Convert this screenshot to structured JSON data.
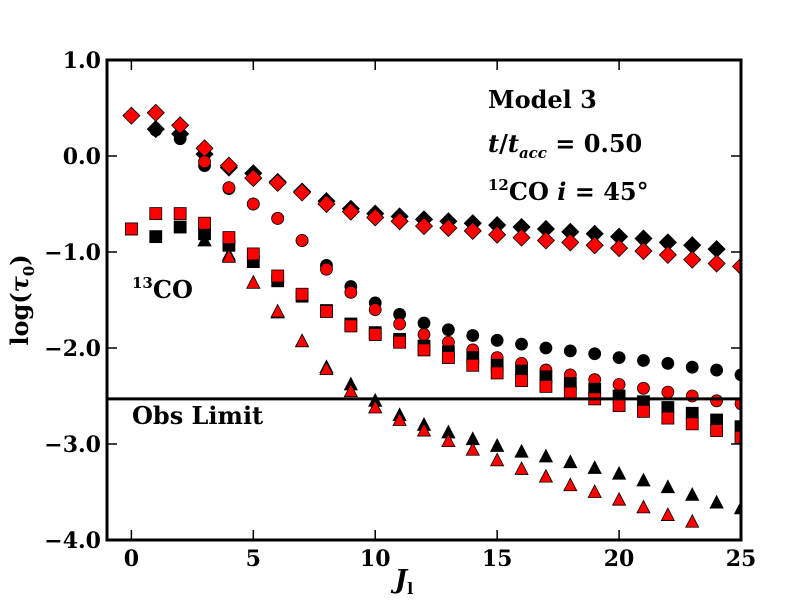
{
  "chart_data": {
    "type": "scatter",
    "xlabel": "J",
    "xlabel_sub": "l",
    "ylabel_main": "log(",
    "ylabel_sym": "τ",
    "ylabel_sub": "0",
    "ylabel_close": ")",
    "xlim": [
      -1,
      25
    ],
    "ylim": [
      -4.0,
      1.0
    ],
    "xticks": [
      0,
      5,
      10,
      15,
      20,
      25
    ],
    "xtick_labels": [
      "0",
      "5",
      "10",
      "15",
      "20",
      "25"
    ],
    "yticks": [
      1.0,
      0.0,
      -1.0,
      -2.0,
      -3.0,
      -4.0
    ],
    "ytick_labels": [
      "1.0",
      "0.0",
      "−1.0",
      "−2.0",
      "−3.0",
      "−4.0"
    ],
    "reference_line": {
      "y": -2.53,
      "label": "Obs Limit"
    },
    "annotations": {
      "model": "Model 3",
      "time_t": "t",
      "time_slash": "/",
      "time_tacc": "t",
      "time_acc_sub": "acc",
      "time_value": " = 0.50",
      "co12_sup": "12",
      "co12_text": "CO ",
      "co12_i": "i",
      "co12_value": " = 45°",
      "co13_sup": "13",
      "co13_text": "CO"
    },
    "series": [
      {
        "name": "",
        "marker": "diamond",
        "color": "#000000",
        "x": [
          1,
          2,
          3,
          4,
          5,
          6,
          7,
          8,
          9,
          10,
          11,
          12,
          13,
          14,
          15,
          16,
          17,
          18,
          19,
          20,
          21,
          22,
          23,
          24
        ],
        "y": [
          0.28,
          0.23,
          0.02,
          -0.12,
          -0.18,
          -0.27,
          -0.37,
          -0.47,
          -0.55,
          -0.6,
          -0.63,
          -0.66,
          -0.68,
          -0.7,
          -0.72,
          -0.74,
          -0.76,
          -0.79,
          -0.81,
          -0.84,
          -0.86,
          -0.9,
          -0.93,
          -0.97
        ]
      },
      {
        "name": "",
        "marker": "diamond",
        "color": "#ff0000",
        "x": [
          0,
          1,
          2,
          3,
          4,
          5,
          6,
          7,
          8,
          9,
          10,
          11,
          12,
          13,
          14,
          15,
          16,
          17,
          18,
          19,
          20,
          21,
          22,
          23,
          24,
          25
        ],
        "y": [
          0.42,
          0.45,
          0.32,
          0.08,
          -0.1,
          -0.23,
          -0.28,
          -0.38,
          -0.5,
          -0.58,
          -0.64,
          -0.68,
          -0.73,
          -0.75,
          -0.78,
          -0.82,
          -0.85,
          -0.88,
          -0.9,
          -0.93,
          -0.96,
          -0.99,
          -1.03,
          -1.08,
          -1.12,
          -1.15
        ]
      },
      {
        "name": "",
        "marker": "circle",
        "color": "#000000",
        "x": [
          1,
          2,
          3,
          4,
          5,
          6,
          7,
          8,
          9,
          10,
          11,
          12,
          13,
          14,
          15,
          16,
          17,
          18,
          19,
          20,
          21,
          22,
          23,
          24,
          25
        ],
        "y": [
          0.27,
          0.18,
          -0.1,
          -0.34,
          -0.5,
          -0.65,
          -0.88,
          -1.14,
          -1.36,
          -1.53,
          -1.65,
          -1.74,
          -1.81,
          -1.87,
          -1.92,
          -1.96,
          -2.0,
          -2.03,
          -2.06,
          -2.1,
          -2.13,
          -2.16,
          -2.2,
          -2.23,
          -2.28
        ]
      },
      {
        "name": "",
        "marker": "circle",
        "color": "#ff0000",
        "x": [
          3,
          4,
          5,
          6,
          7,
          8,
          9,
          10,
          11,
          12,
          13,
          14,
          15,
          16,
          17,
          18,
          19,
          20,
          21,
          22,
          23,
          24,
          25
        ],
        "y": [
          -0.06,
          -0.33,
          -0.5,
          -0.65,
          -0.88,
          -1.18,
          -1.42,
          -1.6,
          -1.75,
          -1.86,
          -1.94,
          -2.02,
          -2.1,
          -2.16,
          -2.23,
          -2.28,
          -2.33,
          -2.38,
          -2.42,
          -2.46,
          -2.5,
          -2.55,
          -2.58
        ]
      },
      {
        "name": "",
        "marker": "square",
        "color": "#000000",
        "x": [
          0,
          1,
          2,
          3,
          4,
          5,
          6,
          7,
          8,
          9,
          10,
          11,
          12,
          13,
          14,
          15,
          16,
          17,
          18,
          19,
          20,
          21,
          22,
          23,
          24,
          25
        ],
        "y": [
          -0.76,
          -0.84,
          -0.74,
          -0.81,
          -0.93,
          -1.1,
          -1.3,
          -1.46,
          -1.61,
          -1.75,
          -1.84,
          -1.91,
          -1.98,
          -2.04,
          -2.1,
          -2.18,
          -2.24,
          -2.3,
          -2.37,
          -2.43,
          -2.5,
          -2.56,
          -2.62,
          -2.68,
          -2.75,
          -2.82
        ]
      },
      {
        "name": "",
        "marker": "square",
        "color": "#ff0000",
        "x": [
          0,
          1,
          2,
          3,
          4,
          5,
          6,
          7,
          8,
          9,
          10,
          11,
          12,
          13,
          14,
          15,
          16,
          17,
          18,
          19,
          20,
          21,
          22,
          23,
          24,
          25
        ],
        "y": [
          -0.76,
          -0.6,
          -0.6,
          -0.7,
          -0.85,
          -1.02,
          -1.25,
          -1.44,
          -1.62,
          -1.77,
          -1.86,
          -1.94,
          -2.02,
          -2.1,
          -2.18,
          -2.26,
          -2.34,
          -2.4,
          -2.47,
          -2.53,
          -2.6,
          -2.66,
          -2.73,
          -2.79,
          -2.86,
          -2.93
        ]
      },
      {
        "name": "",
        "marker": "triangle",
        "color": "#000000",
        "x": [
          3,
          4,
          5,
          6,
          7,
          8,
          9,
          10,
          11,
          12,
          13,
          14,
          15,
          16,
          17,
          18,
          19,
          20,
          21,
          22,
          23,
          24,
          25
        ],
        "y": [
          -0.88,
          -1.03,
          -1.32,
          -1.63,
          -1.93,
          -2.2,
          -2.38,
          -2.55,
          -2.7,
          -2.8,
          -2.88,
          -2.95,
          -3.02,
          -3.08,
          -3.13,
          -3.19,
          -3.25,
          -3.31,
          -3.38,
          -3.45,
          -3.53,
          -3.61,
          -3.67
        ]
      },
      {
        "name": "",
        "marker": "triangle",
        "color": "#ff0000",
        "x": [
          4,
          5,
          6,
          7,
          8,
          9,
          10,
          11,
          12,
          13,
          14,
          15,
          16,
          17,
          18,
          19,
          20,
          21,
          22,
          23
        ],
        "y": [
          -1.05,
          -1.32,
          -1.62,
          -1.93,
          -2.22,
          -2.45,
          -2.62,
          -2.75,
          -2.86,
          -2.97,
          -3.06,
          -3.17,
          -3.26,
          -3.34,
          -3.43,
          -3.5,
          -3.58,
          -3.66,
          -3.74,
          -3.81
        ]
      }
    ]
  }
}
